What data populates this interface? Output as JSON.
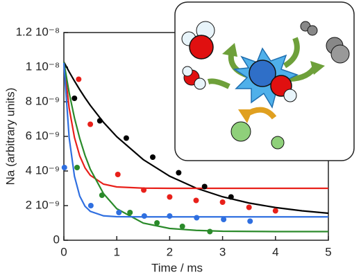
{
  "chart_data": {
    "type": "scatter",
    "xlabel": "Time / ms",
    "ylabel": "Na (arbitrary units)",
    "xlim": [
      0,
      5
    ],
    "xticks": [
      0,
      1,
      2,
      3,
      4,
      5
    ],
    "ylim": [
      0,
      1.2e-08
    ],
    "yticks": [
      0,
      {
        "value": 2e-09,
        "label": "2 10⁻⁹"
      },
      {
        "value": 4e-09,
        "label": "4 10⁻⁹"
      },
      {
        "value": 6e-09,
        "label": "6 10⁻⁹"
      },
      {
        "value": 8e-09,
        "label": "8 10⁻⁹"
      },
      {
        "value": 1e-08,
        "label": "1 10⁻⁸"
      },
      {
        "value": 1.2e-08,
        "label": "1.2 10⁻⁸"
      }
    ],
    "fit_x": [
      0,
      0.1,
      0.2,
      0.3,
      0.4,
      0.5,
      0.75,
      1,
      1.5,
      2,
      2.5,
      3,
      3.5,
      4,
      4.5,
      5
    ],
    "series": [
      {
        "color": "#000000",
        "x": [
          0.2,
          0.68,
          1.18,
          1.68,
          2.17,
          2.66,
          3.16
        ],
        "values": [
          8.2e-09,
          6.9e-09,
          5.9e-09,
          4.8e-09,
          3.9e-09,
          3.1e-09,
          2.5e-09
        ],
        "fit": [
          1.03e-08,
          9.73e-09,
          9.2e-09,
          8.7e-09,
          8.23e-09,
          7.79e-09,
          6.81e-09,
          5.98e-09,
          4.66e-09,
          3.7e-09,
          3.01e-09,
          2.51e-09,
          2.15e-09,
          1.89e-09,
          1.7e-09,
          1.56e-09
        ]
      },
      {
        "color": "#e8201a",
        "x": [
          0.28,
          0.5,
          1.02,
          1.51,
          2.0,
          2.5,
          3.0,
          3.5,
          4.0
        ],
        "values": [
          9.3e-09,
          6.7e-09,
          3.8e-09,
          2.9e-09,
          2.5e-09,
          2.3e-09,
          2.2e-09,
          1.9e-09,
          1.7e-09
        ],
        "fit": [
          1.03e-08,
          7.63e-09,
          5.94e-09,
          4.87e-09,
          4.18e-09,
          3.75e-09,
          3.24e-09,
          3.08e-09,
          3.01e-09,
          3e-09,
          3e-09,
          3e-09,
          3e-09,
          3e-09,
          3e-09,
          3e-09
        ]
      },
      {
        "color": "#2a8a2a",
        "x": [
          0.25,
          0.72,
          1.25,
          1.76,
          2.24,
          2.76
        ],
        "values": [
          4.2e-09,
          2.6e-09,
          1.6e-09,
          1e-09,
          8e-10,
          5e-10
        ],
        "fit": [
          1.03e-08,
          8.52e-09,
          7.07e-09,
          5.88e-09,
          4.9e-09,
          4.1e-09,
          2.69e-09,
          1.82e-09,
          9.9e-10,
          6.8e-10,
          5.7e-10,
          5.2e-10,
          5.1e-10,
          5e-10,
          5e-10,
          5e-10
        ]
      },
      {
        "color": "#2f6fe0",
        "x": [
          0.01,
          0.51,
          1.04,
          1.52,
          2.0,
          2.51,
          3.02,
          3.52
        ],
        "values": [
          4.2e-09,
          2e-09,
          1.6e-09,
          1.4e-09,
          1.4e-09,
          1.3e-09,
          1.2e-09,
          1.1e-09
        ],
        "fit": [
          1.025e-08,
          5.92e-09,
          3.7e-09,
          2.55e-09,
          1.96e-09,
          1.67e-09,
          1.41e-09,
          1.36e-09,
          1.35e-09,
          1.35e-09,
          1.35e-09,
          1.35e-09,
          1.35e-09,
          1.35e-09,
          1.35e-09,
          1.35e-09
        ]
      }
    ]
  }
}
